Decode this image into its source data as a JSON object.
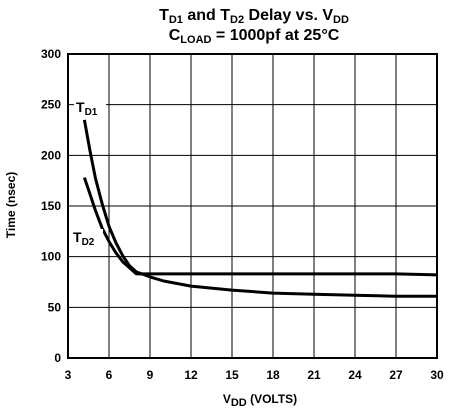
{
  "chart_data": {
    "type": "line",
    "title": {
      "line1": {
        "a": "T",
        "a_sub": "D1",
        "b": " and T",
        "b_sub": "D2",
        "c": " Delay vs. V",
        "c_sub": "DD"
      },
      "line2": {
        "a": "C",
        "a_sub": "LOAD",
        "b": " = 1000pf at 25°C"
      }
    },
    "xlabel": {
      "main": "V",
      "sub": "DD",
      "rest": " (VOLTS)"
    },
    "ylabel": "Time (nsec)",
    "xlim": [
      3,
      30
    ],
    "ylim": [
      0,
      300
    ],
    "x_ticks": [
      3,
      6,
      9,
      12,
      15,
      18,
      21,
      24,
      27,
      30
    ],
    "y_ticks": [
      0,
      50,
      100,
      150,
      200,
      250,
      300
    ],
    "grid": true,
    "series": [
      {
        "name": "TD1",
        "label_main": "T",
        "label_sub": "D1",
        "color": "#000000",
        "x": [
          4.2,
          4.6,
          5.0,
          5.5,
          6.0,
          6.5,
          7.0,
          7.5,
          8.0,
          9.0,
          10.0,
          12.0,
          15.0,
          18.0,
          21.0,
          24.0,
          27.0,
          30.0
        ],
        "y": [
          235,
          205,
          178,
          152,
          130,
          114,
          101,
          91,
          85,
          80,
          76,
          71,
          67,
          64,
          63,
          62,
          61,
          61
        ]
      },
      {
        "name": "TD2",
        "label_main": "T",
        "label_sub": "D2",
        "color": "#000000",
        "x": [
          4.2,
          4.6,
          5.0,
          5.5,
          6.0,
          6.5,
          7.0,
          7.5,
          8.0,
          9.0,
          12.0,
          15.0,
          18.0,
          21.0,
          24.0,
          27.0,
          30.0
        ],
        "y": [
          178,
          162,
          146,
          128,
          115,
          104,
          95,
          89,
          83,
          83,
          83,
          83,
          83,
          83,
          83,
          83,
          82
        ]
      }
    ]
  }
}
